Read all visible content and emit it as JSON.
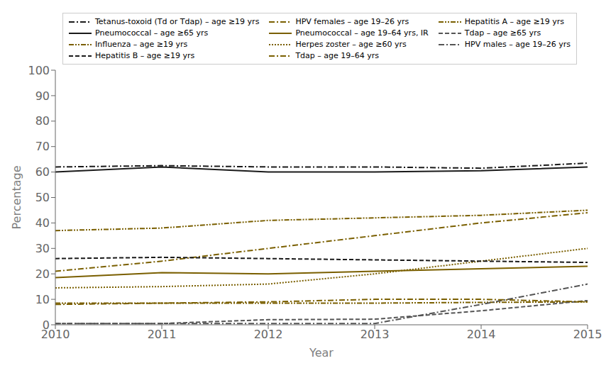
{
  "chart_data": {
    "type": "line",
    "xlabel": "Year",
    "ylabel": "Percentage",
    "x": [
      2010,
      2011,
      2012,
      2013,
      2014,
      2015
    ],
    "series": [
      {
        "name": "Tetanus-toxoid (Td or Tdap) – age ≥19 yrs",
        "color": "#1a1a1a",
        "line_style": "dashdot",
        "values": [
          62,
          62.5,
          62,
          62,
          61.5,
          63.5
        ]
      },
      {
        "name": "HPV females – age 19–26 yrs",
        "color": "#7A5F00",
        "line_style": "dashdot",
        "values": [
          21,
          25,
          30,
          35,
          40,
          44
        ]
      },
      {
        "name": "Hepatitis A – age ≥19 yrs",
        "color": "#7A5F00",
        "line_style": "dashdotdot",
        "values": [
          8.5,
          8.5,
          8.5,
          8.5,
          8.8,
          9.0
        ]
      },
      {
        "name": "Pneumococcal – age ≥65 yrs",
        "color": "#1a1a1a",
        "line_style": "solid",
        "values": [
          60,
          62,
          60,
          60,
          60.5,
          62
        ]
      },
      {
        "name": "Pneumococcal – age 19–64 yrs, IR",
        "color": "#7A5F00",
        "line_style": "solid",
        "values": [
          18.5,
          20.5,
          20,
          21,
          22,
          23
        ]
      },
      {
        "name": "Tdap – age ≥65 yrs",
        "color": "#555555",
        "line_style": "dashed",
        "values": [
          0.5,
          0.5,
          2.0,
          2.2,
          5.5,
          9.5
        ]
      },
      {
        "name": "Influenza – age ≥19 yrs",
        "color": "#7A5F00",
        "line_style": "dashdotdot",
        "values": [
          37,
          38,
          41,
          42,
          43,
          45
        ]
      },
      {
        "name": "Herpes zoster – age ≥60 yrs",
        "color": "#7A5F00",
        "line_style": "dotted",
        "values": [
          14.5,
          15,
          16,
          20,
          25,
          30
        ]
      },
      {
        "name": "HPV males – age 19–26 yrs",
        "color": "#555555",
        "line_style": "dashdot",
        "values": [
          0.5,
          0.5,
          0.5,
          0.5,
          8,
          16
        ]
      },
      {
        "name": "Hepatitis B – age ≥19 yrs",
        "color": "#1a1a1a",
        "line_style": "dashed",
        "values": [
          26,
          26.5,
          26,
          25.5,
          25,
          24.5
        ]
      },
      {
        "name": "Tdap – age 19–64 yrs",
        "color": "#7A5F00",
        "line_style": "dashdot",
        "values": [
          8.0,
          8.5,
          9.0,
          10.0,
          10.0,
          9.0
        ]
      }
    ],
    "xlim": [
      2010,
      2015
    ],
    "ylim": [
      0,
      100
    ],
    "xticks": [
      2010,
      2011,
      2012,
      2013,
      2014,
      2015
    ],
    "yticks": [
      0,
      10,
      20,
      30,
      40,
      50,
      60,
      70,
      80,
      90,
      100
    ],
    "grid": false,
    "legend": "upper left"
  }
}
